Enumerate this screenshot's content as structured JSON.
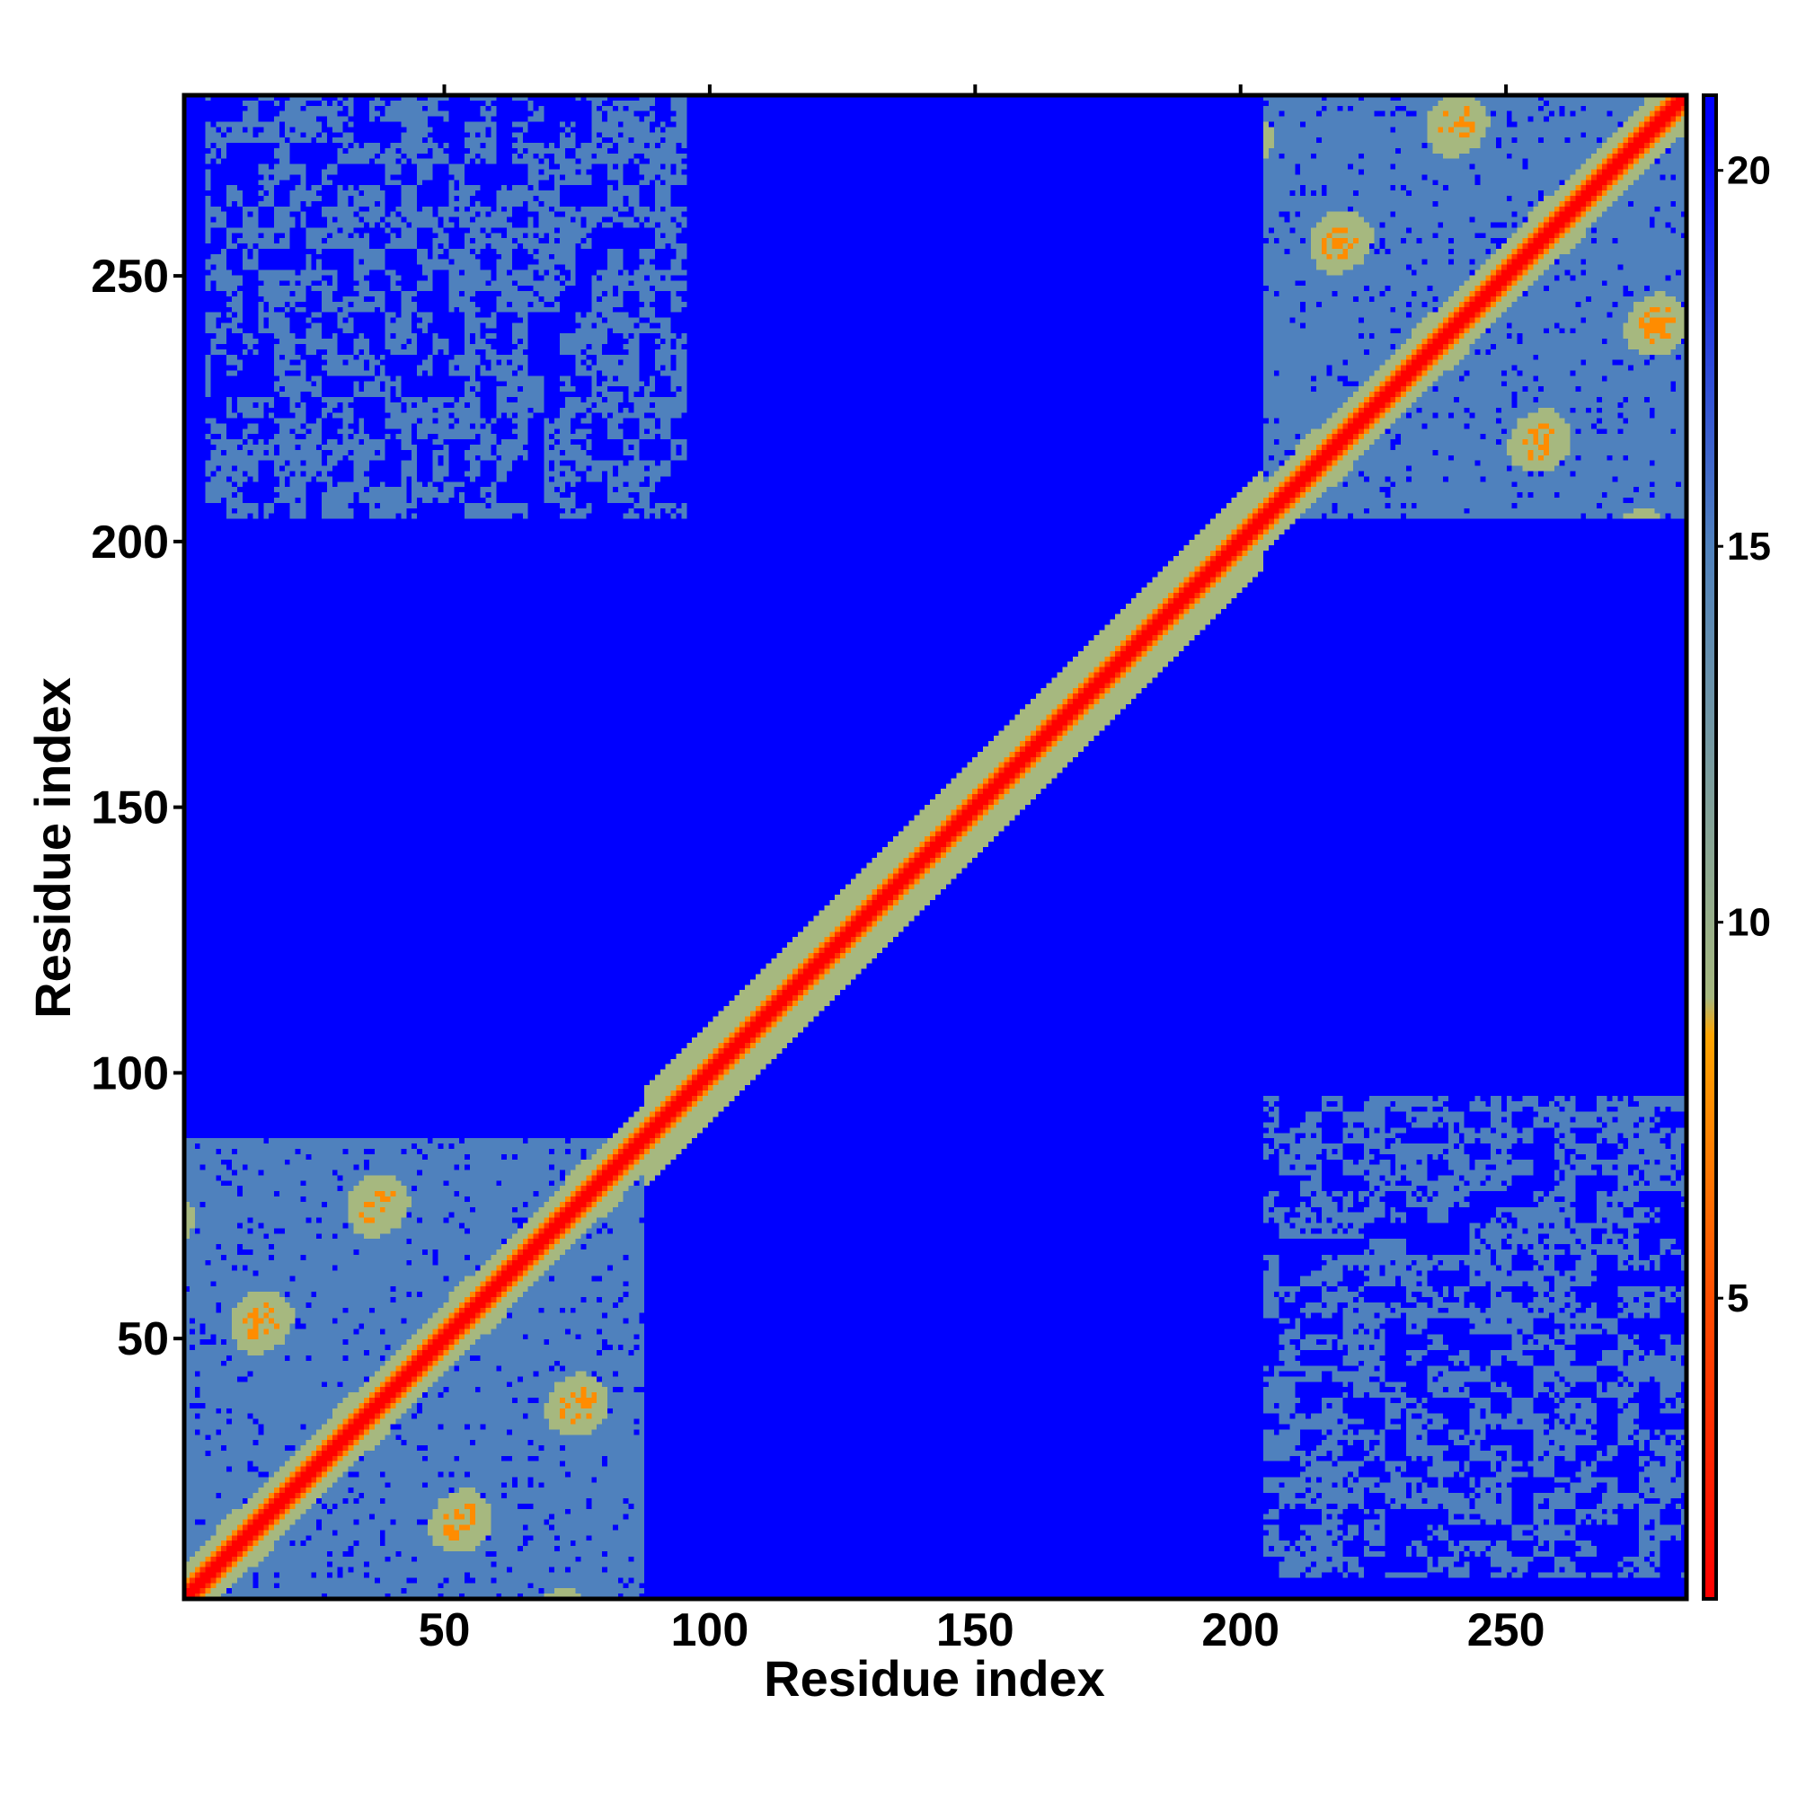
{
  "chart_data": {
    "type": "heatmap",
    "title": "",
    "xlabel": "Residue index",
    "ylabel": "Residue index",
    "xlim": [
      1,
      284
    ],
    "ylim": [
      1,
      284
    ],
    "x_ticks": [
      50,
      100,
      150,
      200,
      250
    ],
    "y_ticks": [
      50,
      100,
      150,
      200,
      250
    ],
    "x_tick_labels": [
      "50",
      "100",
      "150",
      "200",
      "250"
    ],
    "y_tick_labels": [
      "50",
      "100",
      "150",
      "200",
      "250"
    ],
    "matrix_size": 284,
    "value_range": [
      1,
      21
    ],
    "colorbar": {
      "ticks": [
        5,
        10,
        15,
        20
      ],
      "tick_labels": [
        "5",
        "10",
        "15",
        "20"
      ],
      "range": [
        1,
        21
      ],
      "stops": [
        {
          "value": 1,
          "color": "#ff0000"
        },
        {
          "value": 5,
          "color": "#ff4d00"
        },
        {
          "value": 8.5,
          "color": "#ffa500"
        },
        {
          "value": 9,
          "color": "#a6b87f"
        },
        {
          "value": 15,
          "color": "#4f81bd"
        },
        {
          "value": 20.5,
          "color": "#0000ff"
        }
      ]
    },
    "domains": [
      {
        "start": 1,
        "end": 87
      },
      {
        "start": 205,
        "end": 284
      }
    ],
    "linker": {
      "start": 88,
      "end": 204
    },
    "inter_domain_contact_block": {
      "rows": [
        205,
        284
      ],
      "cols": [
        5,
        95
      ]
    },
    "background_color": "#0000ff",
    "near_contact_color": "#4f81bd",
    "diagonal_color": "#ff0000"
  }
}
